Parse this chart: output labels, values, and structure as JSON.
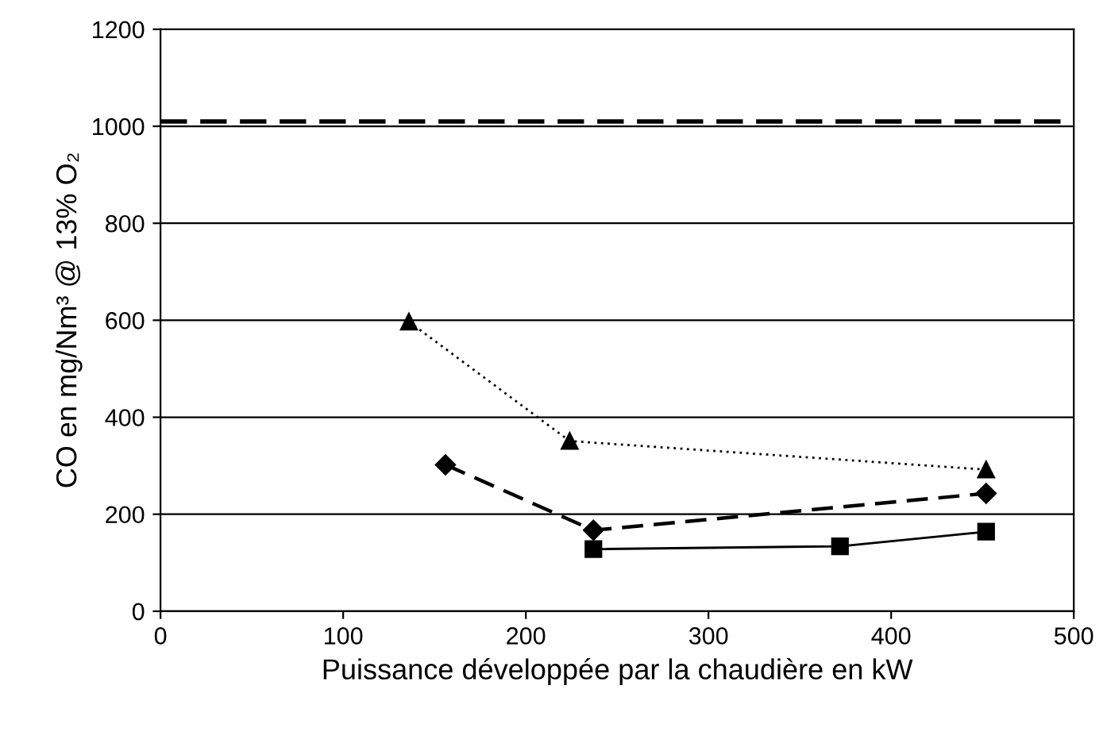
{
  "chart_data": {
    "type": "line",
    "xlabel": "Puissance développée par la chaudière en kW",
    "ylabel": "CO en mg/Nm³ @ 13% O₂",
    "xlim": [
      0,
      500
    ],
    "xticks": [
      0,
      100,
      200,
      300,
      400,
      500
    ],
    "ylim": [
      0,
      1200
    ],
    "yticks": [
      0,
      200,
      400,
      600,
      800,
      1000,
      1200
    ],
    "grid": "y",
    "series": [
      {
        "color": "#000000",
        "marker": "triangle",
        "line_style": "dotted",
        "x": [
          136,
          224,
          452
        ],
        "values": [
          597,
          351,
          292
        ]
      },
      {
        "color": "#000000",
        "marker": "diamond",
        "line_style": "dashed",
        "x": [
          156,
          237,
          452
        ],
        "values": [
          302,
          167,
          243
        ]
      },
      {
        "color": "#000000",
        "marker": "square",
        "line_style": "solid",
        "x": [
          237,
          372,
          452
        ],
        "values": [
          128,
          134,
          164
        ]
      }
    ],
    "ref_lines": [
      {
        "axis": "y",
        "value": 1010,
        "color": "#000000",
        "line_style": "dashed"
      }
    ]
  }
}
